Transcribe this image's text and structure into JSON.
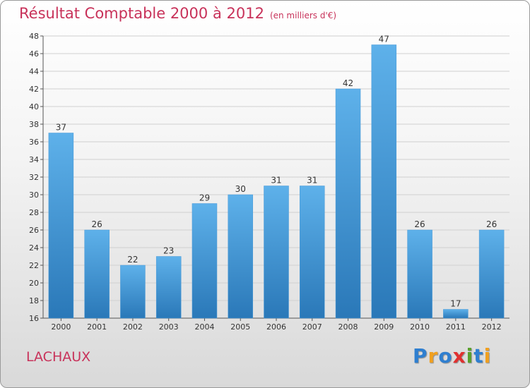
{
  "header": {
    "title": "Résultat Comptable 2000 à 2012",
    "subtitle": "(en milliers d'€)"
  },
  "place_name": "LACHAUX",
  "logo": {
    "text": "Proxiti",
    "letters": [
      "P",
      "r",
      "o",
      "x",
      "i",
      "t",
      "i"
    ]
  },
  "colors": {
    "bar_top": "#5eb1ea",
    "bar_bottom": "#2a78b8",
    "title": "#c8325a",
    "grid": "#d0d0d0"
  },
  "chart_data": {
    "type": "bar",
    "categories": [
      "2000",
      "2001",
      "2002",
      "2003",
      "2004",
      "2005",
      "2006",
      "2007",
      "2008",
      "2009",
      "2010",
      "2011",
      "2012"
    ],
    "values": [
      37,
      26,
      22,
      23,
      29,
      30,
      31,
      31,
      42,
      47,
      26,
      17,
      26
    ],
    "ylim": [
      16,
      48
    ],
    "yticks": [
      16,
      18,
      20,
      22,
      24,
      26,
      28,
      30,
      32,
      34,
      36,
      38,
      40,
      42,
      44,
      46,
      48
    ],
    "grid": true,
    "data_labels": true
  }
}
